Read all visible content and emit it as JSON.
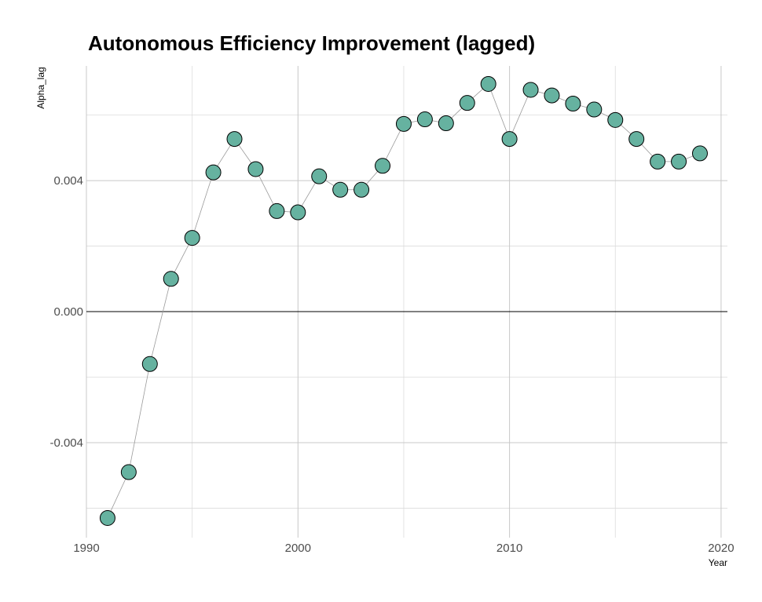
{
  "chart_data": {
    "type": "scatter",
    "title": "Autonomous Efficiency Improvement (lagged)",
    "xlabel": "Year",
    "ylabel": "Alpha_lag",
    "xlim": [
      1990,
      2020.3
    ],
    "ylim": [
      -0.0069,
      0.0075
    ],
    "x_ticks": [
      1990,
      2000,
      2010,
      2020
    ],
    "x_tick_labels": [
      "1990",
      "2000",
      "2010",
      "2020"
    ],
    "y_ticks": [
      -0.004,
      0.0,
      0.004
    ],
    "y_tick_labels": [
      "-0.004",
      "0.000",
      "0.004"
    ],
    "zero_line": true,
    "grid": true,
    "point_color": "#66b2a0",
    "line_color": "#9a9a9a",
    "x": [
      1991,
      1992,
      1993,
      1994,
      1995,
      1996,
      1997,
      1998,
      1999,
      2000,
      2001,
      2002,
      2003,
      2004,
      2005,
      2006,
      2007,
      2008,
      2009,
      2010,
      2011,
      2012,
      2013,
      2014,
      2015,
      2016,
      2017,
      2018,
      2019
    ],
    "values": [
      -0.0063,
      -0.0049,
      -0.0016,
      0.001,
      0.00225,
      0.00425,
      0.00527,
      0.00435,
      0.00307,
      0.00303,
      0.00413,
      0.00372,
      0.00372,
      0.00445,
      0.00573,
      0.00587,
      0.00575,
      0.00637,
      0.00695,
      0.00527,
      0.00677,
      0.0066,
      0.00635,
      0.00617,
      0.00585,
      0.00527,
      0.00458,
      0.00458,
      0.00483
    ]
  }
}
